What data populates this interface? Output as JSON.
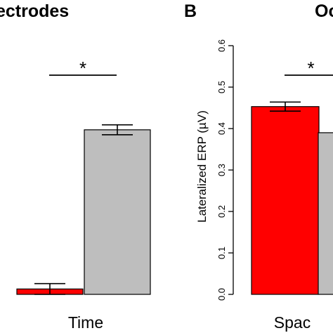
{
  "panel_labels": {
    "a_title_fragment": "ectrodes",
    "b_letter": "B",
    "b_title_fragment": "Oc"
  },
  "colors": {
    "red": "#ff0000",
    "gray": "#bebebe"
  },
  "chart_data": [
    {
      "type": "bar",
      "panel": "A",
      "title": "ectrodes",
      "categories": [
        "Time"
      ],
      "category_label": "Time",
      "series": [
        {
          "color": "#ff0000",
          "values": [
            0.013
          ],
          "error": [
            0.013
          ]
        },
        {
          "color": "#bebebe",
          "values": [
            0.397
          ],
          "error": [
            0.012
          ]
        }
      ],
      "ylim": [
        0,
        0.6
      ],
      "significance": "*"
    },
    {
      "type": "bar",
      "panel": "B",
      "title": "Oc",
      "ylabel": "Lateralized ERP (µV)",
      "yticks": [
        "0.0",
        "0.1",
        "0.2",
        "0.3",
        "0.4",
        "0.5",
        "0.6"
      ],
      "ylim": [
        0,
        0.6
      ],
      "categories": [
        "Spac"
      ],
      "category_label": "Spac",
      "series": [
        {
          "color": "#ff0000",
          "values": [
            0.453
          ],
          "error": [
            0.011
          ]
        },
        {
          "color": "#bebebe",
          "values": [
            0.39
          ]
        }
      ],
      "significance": "*"
    }
  ]
}
